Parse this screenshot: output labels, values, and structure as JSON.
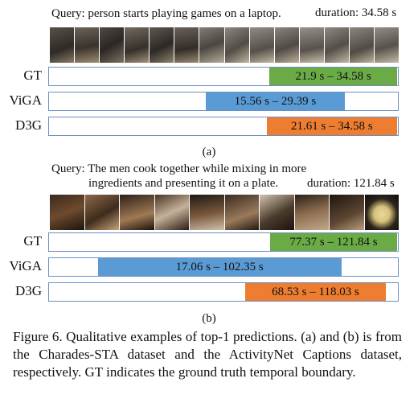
{
  "panel_a": {
    "query": "Query: person starts playing games on a laptop.",
    "duration": "duration: 34.58 s",
    "total": 34.58,
    "rows": [
      {
        "label": "GT",
        "text": "21.9 s – 34.58 s",
        "start": 21.9,
        "end": 34.58,
        "color": "#6aab46"
      },
      {
        "label": "ViGA",
        "text": "15.56 s – 29.39 s",
        "start": 15.56,
        "end": 29.39,
        "color": "#5b9bd5"
      },
      {
        "label": "D3G",
        "text": "21.61 s – 34.58 s",
        "start": 21.61,
        "end": 34.58,
        "color": "#ed7d31"
      }
    ],
    "sublabel": "(a)"
  },
  "panel_b": {
    "query_line1": "Query: The men cook together while mixing in more",
    "query_line2": "ingredients and presenting it on a plate.",
    "duration": "duration: 121.84 s",
    "total": 121.84,
    "rows": [
      {
        "label": "GT",
        "text": "77.37 s – 121.84 s",
        "start": 77.37,
        "end": 121.84,
        "color": "#6aab46"
      },
      {
        "label": "ViGA",
        "text": "17.06 s – 102.35 s",
        "start": 17.06,
        "end": 102.35,
        "color": "#5b9bd5"
      },
      {
        "label": "D3G",
        "text": "68.53 s – 118.03 s",
        "start": 68.53,
        "end": 118.03,
        "color": "#ed7d31"
      }
    ],
    "sublabel": "(b)"
  },
  "caption": "Figure 6. Qualitative examples of top-1 predictions. (a) and (b) is from the Charades-STA dataset and the ActivityNet Captions dataset, respectively.  GT indicates the ground truth temporal boundary."
}
